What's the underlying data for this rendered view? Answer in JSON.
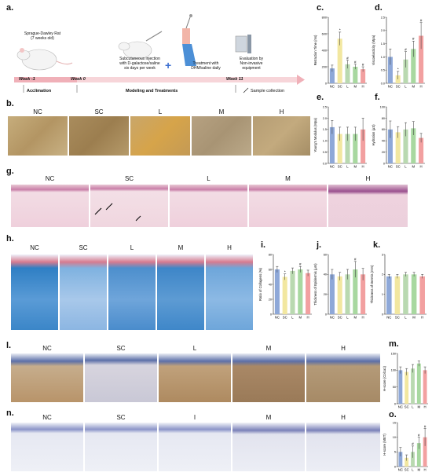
{
  "panel_letters": {
    "a": "a.",
    "b": "b.",
    "c": "c.",
    "d": "d.",
    "e": "e.",
    "f": "f.",
    "g": "g.",
    "h": "h.",
    "i": "i.",
    "j": "j.",
    "k": "k.",
    "l": "l.",
    "m": "m.",
    "n": "n.",
    "o": "o."
  },
  "timeline": {
    "rat_label_line1": "Sprague-Dawley  Rat",
    "rat_label_line2": "(7 weeks old)",
    "step1_line1": "Subcutaneous injection",
    "step1_line2": "with D-galactose/saline",
    "step1_line3": "six days per week",
    "step2_line1": "Treatment with",
    "step2_line2": "DHM/saline daily",
    "step3_line1": "Evaluation by",
    "step3_line2": "Non-invasive",
    "step3_line3": "equipment",
    "week_minus1": "Week -1",
    "week_0": "Week 0",
    "week_11": "Week 11",
    "acclimation": "Acclimation",
    "modeling": "Modeling and Treatments",
    "sample": "Sample collection"
  },
  "groups": [
    "NC",
    "SC",
    "L",
    "M",
    "H"
  ],
  "groups_n": [
    "NC",
    "SC",
    "I",
    "M",
    "H"
  ],
  "colors": {
    "NC": "#8ea8d8",
    "SC": "#f2e7a0",
    "L": "#b9d9b0",
    "M": "#a8d8a0",
    "H": "#f2a0a0"
  },
  "chart_data": [
    {
      "id": "c",
      "type": "bar",
      "ylabel": "Retraction Time (ms)",
      "categories": [
        "NC",
        "SC",
        "L",
        "M",
        "H"
      ],
      "values": [
        180,
        540,
        230,
        200,
        170
      ],
      "errors": [
        40,
        80,
        50,
        30,
        30
      ],
      "ylim": [
        0,
        800
      ],
      "ticks": [
        "0",
        "200",
        "400",
        "600",
        "800"
      ],
      "marks": [
        "",
        "*",
        "#",
        "#",
        "#"
      ]
    },
    {
      "id": "d",
      "type": "bar",
      "ylabel": "Viscoelasticity (Mpa)",
      "categories": [
        "NC",
        "SC",
        "L",
        "M",
        "H"
      ],
      "values": [
        1.0,
        0.3,
        0.9,
        1.3,
        1.8
      ],
      "errors": [
        0.3,
        0.15,
        0.3,
        0.3,
        0.5
      ],
      "ylim": [
        0,
        2.5
      ],
      "ticks": [
        "0.0",
        "0.5",
        "1.0",
        "1.5",
        "2.0",
        "2.5"
      ],
      "marks": [
        "",
        "*",
        "#",
        "#",
        "#"
      ]
    },
    {
      "id": "e",
      "type": "bar",
      "ylabel": "Young's Modulus (Mpa)",
      "categories": [
        "NC",
        "SC",
        "L",
        "M",
        "H"
      ],
      "values": [
        1.6,
        1.3,
        1.3,
        1.3,
        1.5
      ],
      "errors": [
        0.3,
        0.3,
        0.3,
        0.3,
        0.5
      ],
      "ylim": [
        0,
        2.5
      ],
      "ticks": [
        "0.0",
        "0.5",
        "1.0",
        "1.5",
        "2.0",
        "2.5"
      ],
      "marks": [
        "",
        "",
        "",
        "",
        ""
      ]
    },
    {
      "id": "f",
      "type": "bar",
      "ylabel": "Hydration (μS)",
      "categories": [
        "NC",
        "SC",
        "L",
        "M",
        "H"
      ],
      "values": [
        60,
        55,
        60,
        62,
        45
      ],
      "errors": [
        15,
        10,
        12,
        12,
        8
      ],
      "ylim": [
        0,
        100
      ],
      "ticks": [
        "0",
        "20",
        "40",
        "60",
        "80",
        "100"
      ],
      "marks": [
        "",
        "",
        "",
        "",
        ""
      ]
    },
    {
      "id": "i",
      "type": "bar",
      "ylabel": "Ratio of Collagens (%)",
      "categories": [
        "NC",
        "SC",
        "L",
        "M",
        "H"
      ],
      "values": [
        60,
        50,
        58,
        60,
        55
      ],
      "errors": [
        4,
        4,
        4,
        4,
        4
      ],
      "ylim": [
        0,
        80
      ],
      "ticks": [
        "0",
        "20",
        "40",
        "60",
        "80"
      ],
      "marks": [
        "",
        "*",
        "",
        "#",
        ""
      ]
    },
    {
      "id": "j",
      "type": "bar",
      "ylabel": "Thickness of Epidermis (μm)",
      "categories": [
        "NC",
        "SC",
        "L",
        "M",
        "H"
      ],
      "values": [
        40,
        38,
        40,
        45,
        40
      ],
      "errors": [
        5,
        4,
        5,
        8,
        6
      ],
      "ylim": [
        0,
        60
      ],
      "ticks": [
        "0",
        "20",
        "40",
        "60"
      ],
      "marks": [
        "",
        "",
        "",
        "#",
        ""
      ]
    },
    {
      "id": "k",
      "type": "bar",
      "ylabel": "Thickness of Dermis (mm)",
      "categories": [
        "NC",
        "SC",
        "L",
        "M",
        "H"
      ],
      "values": [
        1.9,
        1.9,
        2.0,
        2.0,
        1.9
      ],
      "errors": [
        0.1,
        0.1,
        0.1,
        0.1,
        0.1
      ],
      "ylim": [
        0,
        3
      ],
      "ticks": [
        "0",
        "1",
        "2",
        "3"
      ],
      "marks": [
        "",
        "",
        "",
        "",
        ""
      ]
    },
    {
      "id": "m",
      "type": "bar",
      "ylabel": "H-score (Col1a1)",
      "categories": [
        "NC",
        "SC",
        "L",
        "M",
        "H"
      ],
      "values": [
        100,
        95,
        105,
        120,
        100
      ],
      "errors": [
        10,
        10,
        12,
        8,
        10
      ],
      "ylim": [
        0,
        150
      ],
      "ticks": [
        "0",
        "50",
        "100",
        "150"
      ],
      "marks": [
        "",
        "",
        "",
        "",
        ""
      ]
    },
    {
      "id": "o",
      "type": "bar",
      "ylabel": "H-score (MET)",
      "categories": [
        "NC",
        "SC",
        "L",
        "M",
        "H"
      ],
      "values": [
        5,
        3,
        5,
        8,
        10
      ],
      "errors": [
        1.5,
        1,
        2,
        2,
        3
      ],
      "ylim": [
        0,
        15
      ],
      "ticks": [
        "0",
        "5",
        "10",
        "15"
      ],
      "marks": [
        "",
        "",
        "#",
        "#",
        "#"
      ]
    }
  ]
}
